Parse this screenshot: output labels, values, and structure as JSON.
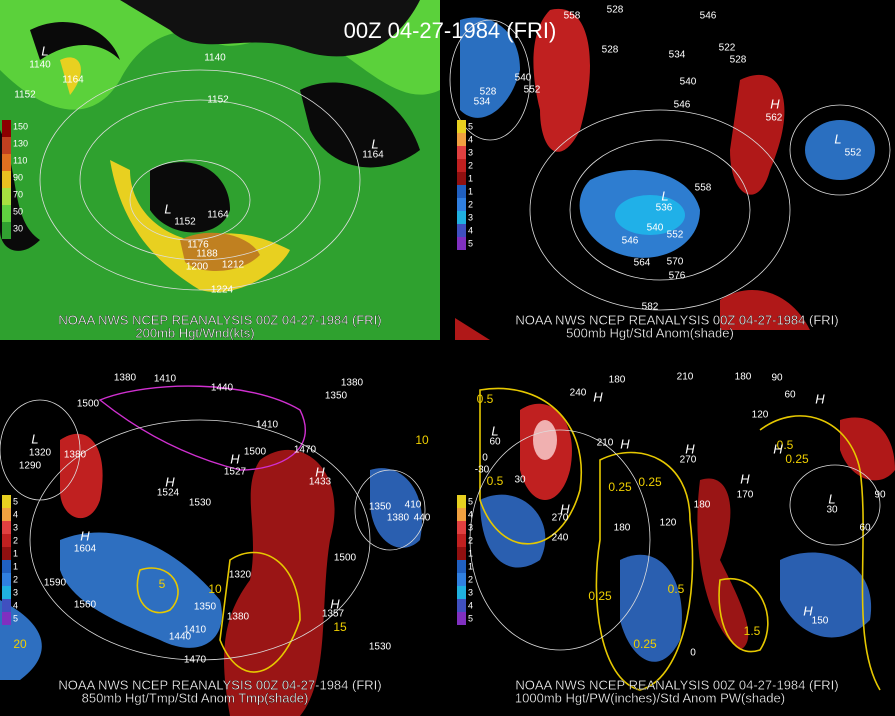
{
  "title": "00Z 04-27-1984 (FRI)",
  "panels": [
    {
      "source": "NOAA NWS NCEP REANALYSIS 00Z 04-27-1984 (FRI)",
      "caption": "200mb Hgt/Wnd(kts)",
      "colorbar": [
        "150",
        "130",
        "110",
        "90",
        "70",
        "50",
        "30"
      ],
      "labels": [
        "L",
        "1140",
        "1164",
        "1152",
        "1140",
        "1152",
        "L",
        "1164",
        "1152",
        "1164",
        "1176",
        "1188",
        "1200",
        "1212",
        "1224",
        "L"
      ]
    },
    {
      "source": "NOAA NWS NCEP REANALYSIS 00Z 04-27-1984 (FRI)",
      "caption": "500mb Hgt/Std Anom(shade)",
      "colorbar": [
        "5",
        "4",
        "3",
        "2",
        "1",
        "1",
        "2",
        "3",
        "4",
        "5"
      ],
      "labels": [
        "558",
        "528",
        "546",
        "522",
        "528",
        "534",
        "528",
        "540",
        "552",
        "528",
        "534",
        "H",
        "562",
        "L",
        "552",
        "546",
        "540",
        "558",
        "L",
        "536",
        "540",
        "552",
        "546",
        "564",
        "570",
        "576",
        "582"
      ]
    },
    {
      "source": "NOAA NWS NCEP REANALYSIS 00Z 04-27-1984 (FRI)",
      "caption": "850mb Hgt/Tmp/Std Anom Tmp(shade)",
      "colorbar": [
        "5",
        "4",
        "3",
        "2",
        "1",
        "1",
        "2",
        "3",
        "4",
        "5"
      ],
      "labels": [
        "1380",
        "1410",
        "1500",
        "1440",
        "1380",
        "1350",
        "1410",
        "1500",
        "1470",
        "L",
        "1320",
        "1380",
        "1290",
        "H",
        "1524",
        "1530",
        "H",
        "1527",
        "H",
        "1433",
        "1590",
        "H",
        "1604",
        "1560",
        "5",
        "10",
        "1350",
        "1320",
        "1410",
        "1440",
        "1470",
        "1380",
        "1500",
        "H",
        "1357",
        "15",
        "1530",
        "1380",
        "1350",
        "410",
        "440",
        "10",
        "20"
      ]
    },
    {
      "source": "NOAA NWS NCEP REANALYSIS 00Z 04-27-1984 (FRI)",
      "caption": "1000mb Hgt/PW(inches)/Std Anom PW(shade)",
      "colorbar": [
        "5",
        "4",
        "3",
        "2",
        "1",
        "1",
        "2",
        "3",
        "4",
        "5"
      ],
      "labels": [
        "0.5",
        "240",
        "180",
        "H",
        "210",
        "180",
        "90",
        "60",
        "120",
        "H",
        "L",
        "60",
        "-30",
        "30",
        "0",
        "0.5",
        "H",
        "210",
        "H",
        "270",
        "0.25",
        "0.25",
        "H",
        "270",
        "180",
        "240",
        "120",
        "180",
        "H",
        "170",
        "0.5",
        "0.25",
        "H",
        "L",
        "30",
        "90",
        "60",
        "0.25",
        "0.5",
        "0.25",
        "1.5",
        "H",
        "150",
        "0"
      ]
    }
  ]
}
